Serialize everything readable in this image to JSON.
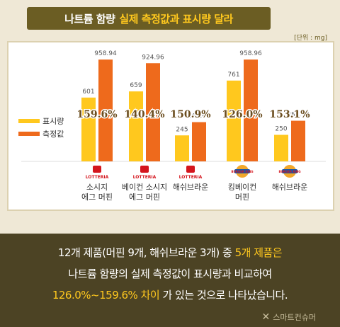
{
  "header": {
    "title_part1": "나트륨 함량",
    "title_part2": "실제 측정값과 표시량 달라"
  },
  "unit_label": "[단위 : mg]",
  "chart_data": {
    "type": "bar",
    "categories": [
      "소시지\n에그 머핀",
      "베이컨 소시지\n에그 머핀",
      "해쉬브라운",
      "킹베이컨\n머핀",
      "해쉬브라운"
    ],
    "brands": [
      "LOTTERIA",
      "LOTTERIA",
      "LOTTERIA",
      "BURGER KING",
      "BURGER KING"
    ],
    "series": [
      {
        "name": "표시량",
        "values": [
          601,
          659,
          245,
          761,
          250
        ],
        "labels": [
          "601",
          "659",
          "245",
          "761",
          "250"
        ],
        "color": "#ffc81e"
      },
      {
        "name": "측정값",
        "values": [
          958.94,
          924.96,
          369.6,
          958.96,
          382.78
        ],
        "labels": [
          "958.94",
          "924.96",
          "369.60",
          "958.96",
          "382.78"
        ],
        "color": "#ee6a1c"
      }
    ],
    "ratios": [
      "159.6%",
      "140.4%",
      "150.9%",
      "126.0%",
      "153.1%"
    ],
    "ylim": [
      0,
      1000
    ],
    "legend": "left"
  },
  "caption": {
    "line1_a": "12개 제품(머핀 9개, 해쉬브라운 3개) 중",
    "line1_b": "5개 제품은",
    "line2": "나트륨 함량의 실제 측정값이 표시량과 비교하여",
    "line3_a": "126.0%~159.6% 차이",
    "line3_b": "가 있는 것으로 나타났습니다."
  },
  "brand_footer": "스마트컨슈머"
}
